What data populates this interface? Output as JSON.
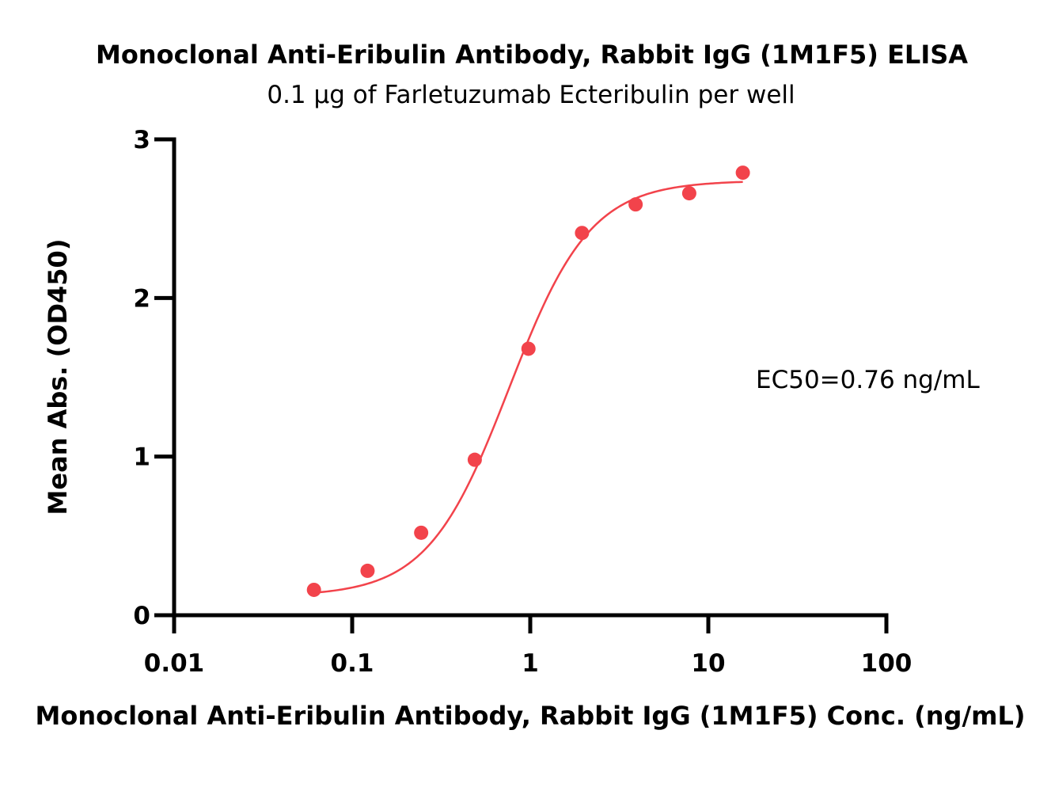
{
  "chart_data": {
    "type": "scatter",
    "title": "Monoclonal Anti-Eribulin Antibody, Rabbit IgG (1M1F5) ELISA",
    "subtitle": "0.1 μg of Farletuzumab Ecteribulin per well",
    "xlabel": "Monoclonal Anti-Eribulin Antibody, Rabbit IgG (1M1F5) Conc. (ng/mL)",
    "ylabel": "Mean Abs. (OD450)",
    "xscale": "log",
    "xlim": [
      0.01,
      100
    ],
    "ylim": [
      0,
      3
    ],
    "x_ticks": [
      0.01,
      0.1,
      1,
      10,
      100
    ],
    "x_tick_labels": [
      "0.01",
      "0.1",
      "1",
      "10",
      "100"
    ],
    "y_ticks": [
      0,
      1,
      2,
      3
    ],
    "y_tick_labels": [
      "0",
      "1",
      "2",
      "3"
    ],
    "grid": false,
    "legend": "none",
    "series": [
      {
        "color": "#f2434b",
        "x": [
          0.061,
          0.122,
          0.244,
          0.488,
          0.977,
          1.953,
          3.906,
          7.813,
          15.625
        ],
        "y": [
          0.16,
          0.28,
          0.52,
          0.98,
          1.68,
          2.41,
          2.59,
          2.66,
          2.79
        ]
      }
    ],
    "fit_curve": {
      "type": "4PL",
      "color": "#f2434b",
      "bottom": 0.12,
      "top": 2.74,
      "ec50": 0.76,
      "hill": 1.9,
      "x_range": [
        0.061,
        15.625
      ]
    },
    "annotation": "EC50=0.76 ng/mL"
  }
}
